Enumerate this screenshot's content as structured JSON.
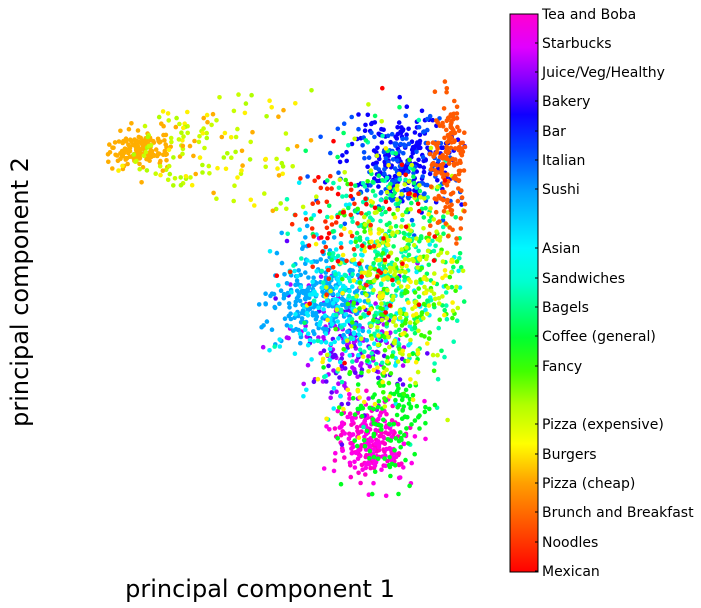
{
  "chart_data": {
    "type": "scatter",
    "title": "",
    "xlabel": "principal component 1",
    "ylabel": "principal component 2",
    "ticks_visible": false,
    "grid": false,
    "legend": "colorbar-right",
    "colormap": "hsv",
    "categories": [
      {
        "name": "Mexican",
        "color": "#ff0000"
      },
      {
        "name": "Noodles",
        "color": "#ff2a00"
      },
      {
        "name": "Brunch and Breakfast",
        "color": "#ff5a00"
      },
      {
        "name": "Pizza (cheap)",
        "color": "#ffae00"
      },
      {
        "name": "Burgers",
        "color": "#fff200"
      },
      {
        "name": "Pizza (expensive)",
        "color": "#c8ff00"
      },
      {
        "name": "Fancy",
        "color": "#33ff00"
      },
      {
        "name": "Coffee (general)",
        "color": "#00ff1f"
      },
      {
        "name": "Bagels",
        "color": "#00ff66"
      },
      {
        "name": "Sandwiches",
        "color": "#00ffb0"
      },
      {
        "name": "Asian",
        "color": "#00f0ff"
      },
      {
        "name": "Sushi",
        "color": "#00a8ff"
      },
      {
        "name": "Italian",
        "color": "#0050ff"
      },
      {
        "name": "Bar",
        "color": "#0a00ff"
      },
      {
        "name": "Bakery",
        "color": "#6000ff"
      },
      {
        "name": "Juice/Veg/Healthy",
        "color": "#b000ff"
      },
      {
        "name": "Starbucks",
        "color": "#ff00e8"
      },
      {
        "name": "Tea and Boba",
        "color": "#ff00c8"
      }
    ]
  }
}
